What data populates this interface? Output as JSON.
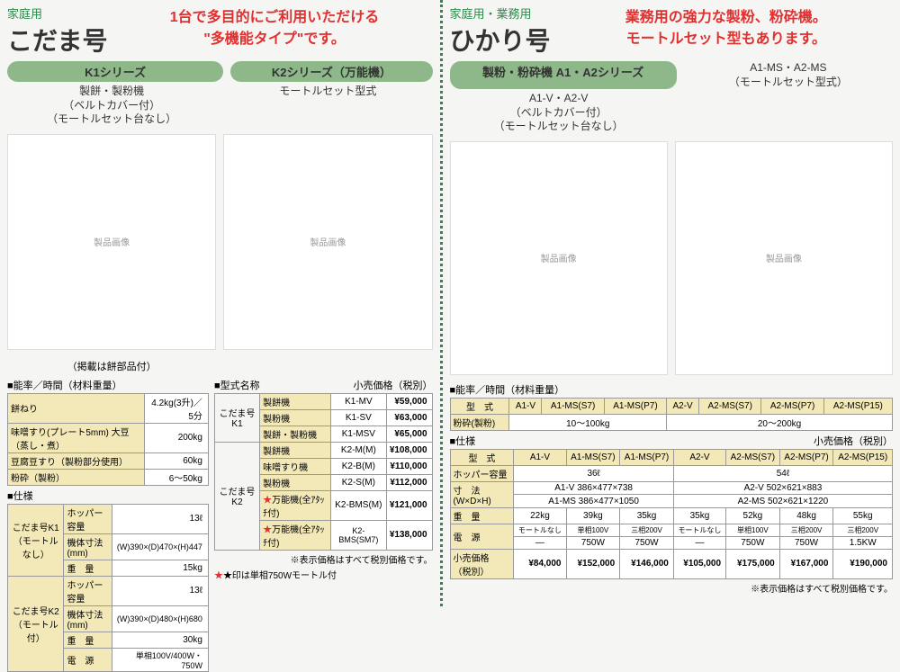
{
  "left": {
    "category": "家庭用",
    "productName": "こだま号",
    "tagline1": "1台で多目的にご利用いただける",
    "tagline2": "\"多機能タイプ\"です。",
    "series1": "K1シリーズ",
    "series2": "K2シリーズ（万能機）",
    "sub1a": "製餅・製粉機",
    "sub1b": "（ベルトカバー付）",
    "sub1c": "（モートルセット台なし）",
    "sub2": "モートルセット型式",
    "caption1": "（掲載は餅部品付）",
    "capacityLabel": "■能率／時間（材料重量）",
    "capacity": {
      "rows": [
        {
          "label": "餅ねり",
          "value": "4.2kg(3升)／5分"
        },
        {
          "label": "味噌すり(プレート5mm) 大豆（蒸し・煮）",
          "value": "200kg"
        },
        {
          "label": "豆腐豆すり（製粉部分使用）",
          "value": "60kg"
        },
        {
          "label": "粉砕（製粉）",
          "value": "6～50kg"
        }
      ]
    },
    "specLabel": "■仕様",
    "specK1": {
      "head": "こだま号K1\n（モートルなし）",
      "rows": [
        {
          "k": "ホッパー容量",
          "v": "13ℓ"
        },
        {
          "k": "機体寸法(mm)",
          "v": "(W)390×(D)470×(H)447"
        },
        {
          "k": "重　量",
          "v": "15kg"
        }
      ]
    },
    "specK2": {
      "head": "こだま号K2\n（モートル付）",
      "rows": [
        {
          "k": "ホッパー容量",
          "v": "13ℓ"
        },
        {
          "k": "機体寸法(mm)",
          "v": "(W)390×(D)480×(H)680"
        },
        {
          "k": "重　量",
          "v": "30kg"
        },
        {
          "k": "電　源",
          "v": "単相100V/400W・750W"
        }
      ]
    },
    "priceLabel": "■型式名称",
    "priceHead": "小売価格（税別）",
    "priceK1head": "こだま号K1",
    "priceK2head": "こだま号K2",
    "prices": [
      {
        "g": "K1",
        "type": "製餅機",
        "model": "K1-MV",
        "price": "¥59,000"
      },
      {
        "g": "K1",
        "type": "製粉機",
        "model": "K1-SV",
        "price": "¥63,000"
      },
      {
        "g": "K1",
        "type": "製餅・製粉機",
        "model": "K1-MSV",
        "price": "¥65,000"
      },
      {
        "g": "K2",
        "type": "製餅機",
        "model": "K2-M(M)",
        "price": "¥108,000"
      },
      {
        "g": "K2",
        "type": "味噌すり機",
        "model": "K2-B(M)",
        "price": "¥110,000"
      },
      {
        "g": "K2",
        "type": "製粉機",
        "model": "K2-S(M)",
        "price": "¥112,000"
      },
      {
        "g": "K2",
        "type": "万能機(全ｱﾀｯﾁ付)",
        "model": "K2-BMS(M)",
        "price": "¥121,000",
        "star": true
      },
      {
        "g": "K2",
        "type": "万能機(全ｱﾀｯﾁ付)",
        "model": "K2-BMS(SM7)",
        "price": "¥138,000",
        "star": true
      }
    ],
    "note1": "※表示価格はすべて税別価格です。",
    "note2": "★印は単相750Wモートル付"
  },
  "right": {
    "category": "家庭用・業務用",
    "productName": "ひかり号",
    "tagline1": "業務用の強力な製粉、粉砕機。",
    "tagline2": "モートルセット型もあります。",
    "series1": "製粉・粉砕機 A1・A2シリーズ",
    "series2": "A1-MS・A2-MS\n（モートルセット型式）",
    "sub1a": "A1-V・A2-V",
    "sub1b": "（ベルトカバー付）",
    "sub1c": "（モートルセット台なし）",
    "capacityLabel": "■能率／時間（材料重量）",
    "capacityHead": [
      "型　式",
      "A1-V",
      "A1-MS(S7)",
      "A1-MS(P7)",
      "A2-V",
      "A2-MS(S7)",
      "A2-MS(P7)",
      "A2-MS(P15)"
    ],
    "capacityRow": {
      "label": "粉砕(製粉)",
      "v1": "10～100kg",
      "v2": "20～200kg"
    },
    "specLabel": "■仕様",
    "priceHead": "小売価格（税別）",
    "specHead": [
      "型　式",
      "A1-V",
      "A1-MS(S7)",
      "A1-MS(P7)",
      "A2-V",
      "A2-MS(S7)",
      "A2-MS(P7)",
      "A2-MS(P15)"
    ],
    "hopper": {
      "label": "ホッパー容量",
      "v1": "36ℓ",
      "v2": "54ℓ"
    },
    "dim": {
      "label": "寸　法\n(W×D×H)",
      "a1v": "A1-V 386×477×738",
      "a2v": "A2-V 502×621×883",
      "a1ms": "A1-MS 386×477×1050",
      "a2ms": "A2-MS 502×621×1220"
    },
    "weight": {
      "label": "重　量",
      "v": [
        "22kg",
        "39kg",
        "35kg",
        "35kg",
        "52kg",
        "48kg",
        "55kg"
      ]
    },
    "power": {
      "label": "電　源",
      "r1": [
        "モートルなし",
        "単相100V",
        "三相200V",
        "モートルなし",
        "単相100V",
        "三相200V",
        "三相200V"
      ],
      "r2": [
        "—",
        "750W",
        "750W",
        "—",
        "750W",
        "750W",
        "1.5KW"
      ]
    },
    "price": {
      "label": "小売価格\n（税別）",
      "v": [
        "¥84,000",
        "¥152,000",
        "¥146,000",
        "¥105,000",
        "¥175,000",
        "¥167,000",
        "¥190,000"
      ]
    },
    "note": "※表示価格はすべて税別価格です。"
  },
  "colors": {
    "headline": "#e03030",
    "badge": "#8fb88a",
    "green": "#2a8a4a",
    "th": "#f2e8b8"
  }
}
